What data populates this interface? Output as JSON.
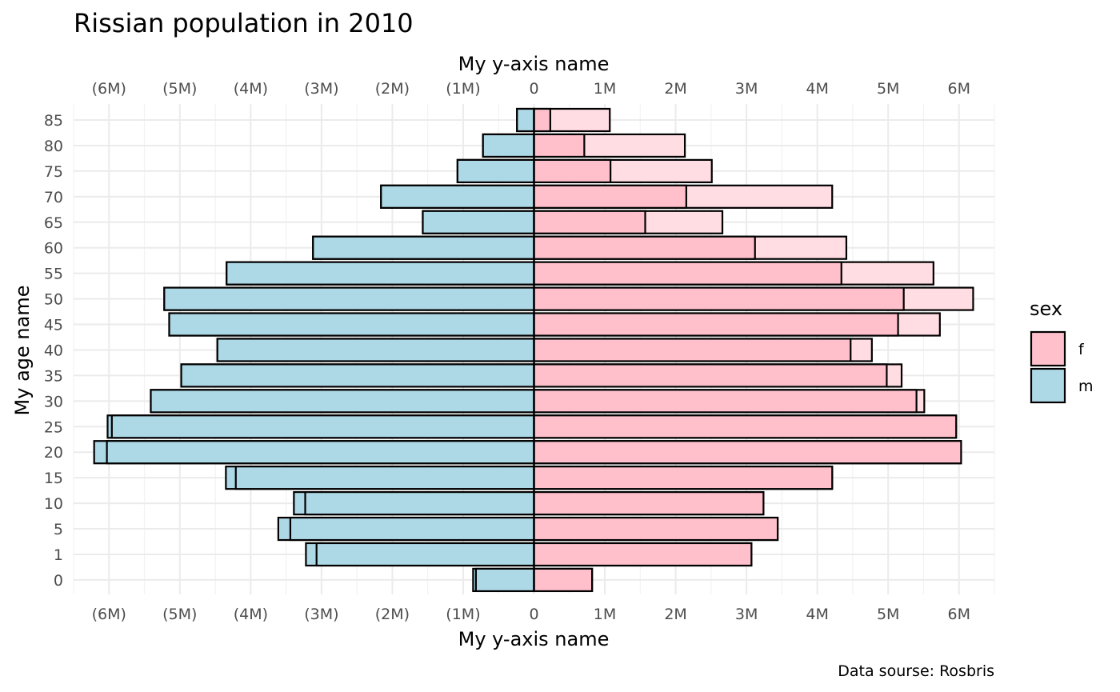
{
  "chart_data": {
    "type": "bar",
    "orientation": "horizontal",
    "title": "Rissian population in 2010",
    "xlabel": "My y-axis name",
    "ylabel": "My age name",
    "caption": "Data sourse: Rosbris",
    "categories": [
      "0",
      "1",
      "5",
      "10",
      "15",
      "20",
      "25",
      "30",
      "35",
      "40",
      "45",
      "50",
      "55",
      "60",
      "65",
      "70",
      "75",
      "80",
      "85"
    ],
    "xlim": [
      -6.5,
      6.5
    ],
    "x_ticks": [
      -6,
      -5,
      -4,
      -3,
      -2,
      -1,
      0,
      1,
      2,
      3,
      4,
      5,
      6
    ],
    "x_tick_labels": [
      "(6M)",
      "(5M)",
      "(4M)",
      "(3M)",
      "(2M)",
      "(1M)",
      "0",
      "1M",
      "2M",
      "3M",
      "4M",
      "5M",
      "6M"
    ],
    "x_axis_duplicated_top": true,
    "grid": true,
    "legend": {
      "title": "sex",
      "position": "right",
      "entries": [
        {
          "label": "f",
          "color": "#ffc0cb"
        },
        {
          "label": "m",
          "color": "#add8e6"
        }
      ]
    },
    "series": [
      {
        "sex": "m",
        "layer": "front",
        "color": "#add8e6",
        "values": [
          -0.82,
          -3.07,
          -3.44,
          -3.23,
          -4.21,
          -6.03,
          -5.96,
          -5.41,
          -4.98,
          -4.47,
          -5.15,
          -5.22,
          -4.34,
          -3.12,
          -1.57,
          -2.16,
          -1.08,
          -0.72,
          -0.24
        ]
      },
      {
        "sex": "m",
        "layer": "back",
        "color": "#add8e6",
        "values": [
          -0.86,
          -3.22,
          -3.61,
          -3.39,
          -4.35,
          -6.21,
          -6.02,
          -5.41,
          -4.98,
          -4.47,
          -5.15,
          -5.22,
          -4.34,
          -3.12,
          -1.57,
          -2.16,
          -1.08,
          -0.72,
          -0.24
        ]
      },
      {
        "sex": "f",
        "layer": "front",
        "color": "#ffc0cb",
        "values": [
          0.82,
          3.07,
          3.44,
          3.24,
          4.21,
          6.03,
          5.96,
          5.4,
          4.98,
          4.47,
          5.14,
          5.22,
          4.34,
          3.12,
          1.57,
          2.15,
          1.08,
          0.71,
          0.23
        ]
      },
      {
        "sex": "f",
        "layer": "back",
        "color": "#ffdde3",
        "values": [
          0.82,
          3.07,
          3.44,
          3.24,
          4.21,
          6.03,
          5.96,
          5.51,
          5.19,
          4.77,
          5.73,
          6.2,
          5.64,
          4.41,
          2.66,
          4.21,
          2.51,
          2.13,
          1.07
        ]
      }
    ]
  }
}
